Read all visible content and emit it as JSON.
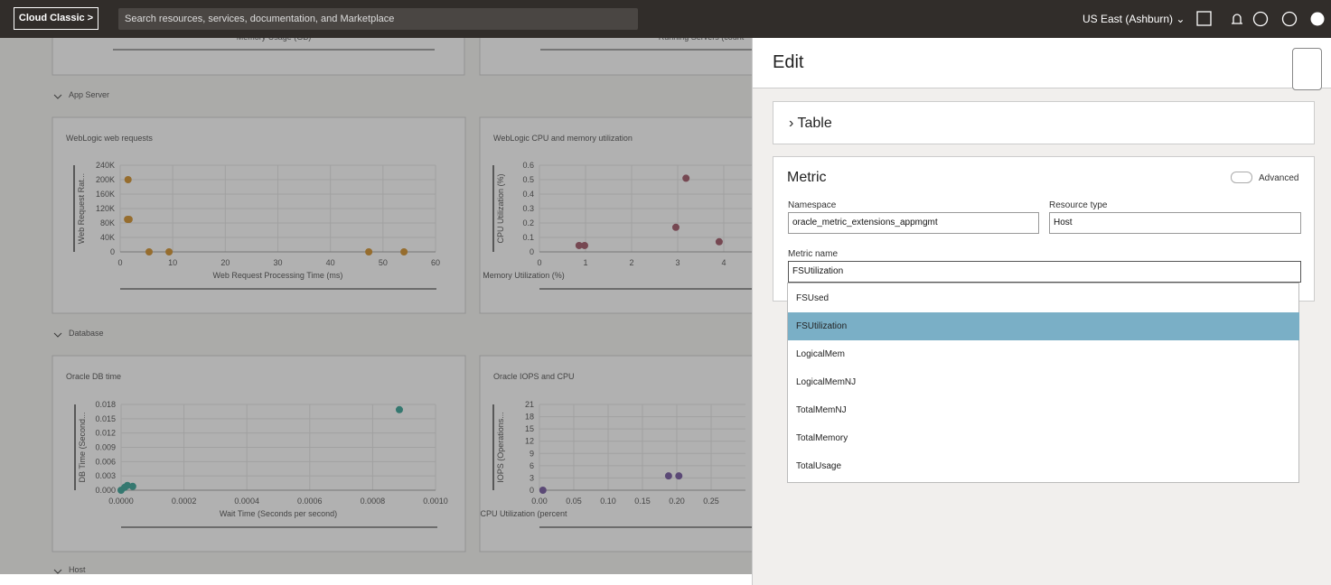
{
  "topbar": {
    "brand": "Cloud Classic",
    "search_placeholder": "Search resources, services, documentation, and Marketplace",
    "region": "US East (Ashburn)"
  },
  "dashboard": {
    "top_cards": [
      "Memory Usage (GB)",
      "Running Servers (count"
    ],
    "sections": [
      "App Server",
      "Database",
      "Host"
    ],
    "charts": [
      {
        "type": "scatter",
        "title": "WebLogic web requests",
        "x_label": "Web Request Processing Time (ms)",
        "y_label": "Web Request Rat...",
        "color": "#d08a1e",
        "xlim": [
          0,
          60
        ],
        "ylim": [
          0,
          240000
        ],
        "xticks": [
          0,
          10,
          20,
          30,
          40,
          50,
          60
        ],
        "yticks": [
          0,
          {
            "value": 40000,
            "label": "40K"
          },
          {
            "value": 80000,
            "label": "80K"
          },
          {
            "value": 120000,
            "label": "120K"
          },
          {
            "value": 160000,
            "label": "160K"
          },
          {
            "value": 200000,
            "label": "200K"
          },
          {
            "value": 240000,
            "label": "240K"
          }
        ],
        "x": [
          1.5,
          1.4,
          1.7,
          5.5,
          9.3,
          47.3,
          54
        ],
        "y": [
          200000,
          90000,
          90000,
          0,
          0,
          0,
          0
        ]
      },
      {
        "type": "scatter",
        "title": "WebLogic CPU and memory utilization",
        "x_label": "Memory Utilization (%)",
        "y_label": "CPU Utilization (%)",
        "color": "#9a4a5c",
        "xlim": [
          0,
          5
        ],
        "ylim": [
          0,
          0.6
        ],
        "xticks": [
          0,
          1,
          2,
          3,
          4
        ],
        "yticks": [
          0,
          0.1,
          0.2,
          0.3,
          0.4,
          0.5,
          0.6
        ],
        "x": [
          0.86,
          0.98,
          2.96,
          3.18,
          3.9
        ],
        "y": [
          0.044,
          0.044,
          0.17,
          0.51,
          0.07
        ]
      },
      {
        "type": "scatter",
        "title": "Oracle DB time",
        "x_label": "Wait Time (Seconds per second)",
        "y_label": "DB Time (Second...",
        "color": "#2a9d8f",
        "xlim": [
          0,
          0.001
        ],
        "ylim": [
          0,
          0.018
        ],
        "xticks": [
          {
            "value": 0,
            "label": "0.0000"
          },
          {
            "value": 0.0002,
            "label": "0.0002"
          },
          {
            "value": 0.0004,
            "label": "0.0004"
          },
          {
            "value": 0.0006,
            "label": "0.0006"
          },
          {
            "value": 0.0008,
            "label": "0.0008"
          },
          {
            "value": 0.001,
            "label": "0.0010"
          }
        ],
        "yticks": [
          {
            "value": 0,
            "label": "0.000"
          },
          0.003,
          0.006,
          0.009,
          0.012,
          0.015,
          0.018
        ],
        "x": [
          0,
          1.15e-05,
          2e-05,
          3.7e-05,
          0.000885
        ],
        "y": [
          0,
          0.0006,
          0.001,
          0.0008,
          0.0169
        ]
      },
      {
        "type": "scatter",
        "title": "Oracle IOPS and CPU",
        "x_label": "CPU Utilization (percent",
        "y_label": "IOPS (Operations...",
        "color": "#6b4c9a",
        "xlim": [
          0,
          0.3
        ],
        "ylim": [
          0,
          21
        ],
        "xticks": [
          {
            "value": 0,
            "label": "0.00"
          },
          0.05,
          {
            "value": 0.1,
            "label": "0.10"
          },
          0.15,
          {
            "value": 0.2,
            "label": "0.20"
          },
          0.25
        ],
        "yticks": [
          0,
          3,
          6,
          9,
          12,
          15,
          18,
          21
        ],
        "x": [
          0.005,
          0.188,
          0.203
        ],
        "y": [
          0,
          3.5,
          3.5
        ]
      }
    ]
  },
  "panel": {
    "title": "Edit",
    "table_section": "Table",
    "metric_section": "Metric",
    "advanced": "Advanced",
    "namespace_label": "Namespace",
    "namespace_value": "oracle_metric_extensions_appmgmt",
    "resource_type_label": "Resource type",
    "resource_type_value": "Host",
    "metric_name_label": "Metric name",
    "metric_name_value": "FSUtilization",
    "options": [
      "FSUsed",
      "FSUtilization",
      "LogicalMem",
      "LogicalMemNJ",
      "TotalMemNJ",
      "TotalMemory",
      "TotalUsage"
    ],
    "selected_option": 1
  }
}
